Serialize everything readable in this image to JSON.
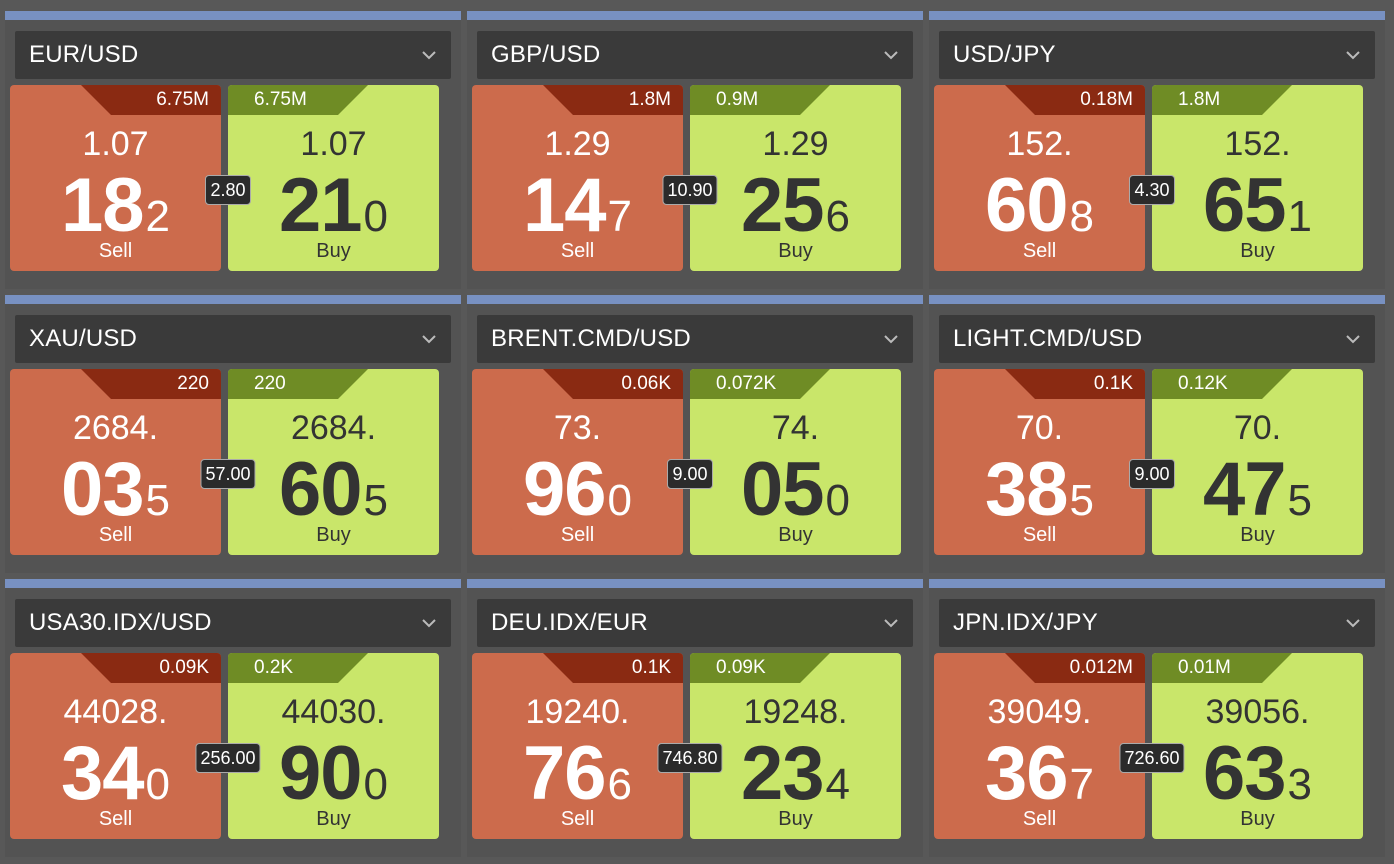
{
  "tiles": [
    {
      "symbol": "EUR/USD",
      "sell": {
        "volume": "6.75M",
        "prefix": "1.07",
        "big": "18",
        "pip": "2",
        "label": "Sell"
      },
      "buy": {
        "volume": "6.75M",
        "prefix": "1.07",
        "big": "21",
        "pip": "0",
        "label": "Buy"
      },
      "spread": "2.80"
    },
    {
      "symbol": "GBP/USD",
      "sell": {
        "volume": "1.8M",
        "prefix": "1.29",
        "big": "14",
        "pip": "7",
        "label": "Sell"
      },
      "buy": {
        "volume": "0.9M",
        "prefix": "1.29",
        "big": "25",
        "pip": "6",
        "label": "Buy"
      },
      "spread": "10.90"
    },
    {
      "symbol": "USD/JPY",
      "sell": {
        "volume": "0.18M",
        "prefix": "152.",
        "big": "60",
        "pip": "8",
        "label": "Sell"
      },
      "buy": {
        "volume": "1.8M",
        "prefix": "152.",
        "big": "65",
        "pip": "1",
        "label": "Buy"
      },
      "spread": "4.30"
    },
    {
      "symbol": "XAU/USD",
      "sell": {
        "volume": "220",
        "prefix": "2684.",
        "big": "03",
        "pip": "5",
        "label": "Sell"
      },
      "buy": {
        "volume": "220",
        "prefix": "2684.",
        "big": "60",
        "pip": "5",
        "label": "Buy"
      },
      "spread": "57.00"
    },
    {
      "symbol": "BRENT.CMD/USD",
      "sell": {
        "volume": "0.06K",
        "prefix": "73.",
        "big": "96",
        "pip": "0",
        "label": "Sell"
      },
      "buy": {
        "volume": "0.072K",
        "prefix": "74.",
        "big": "05",
        "pip": "0",
        "label": "Buy"
      },
      "spread": "9.00"
    },
    {
      "symbol": "LIGHT.CMD/USD",
      "sell": {
        "volume": "0.1K",
        "prefix": "70.",
        "big": "38",
        "pip": "5",
        "label": "Sell"
      },
      "buy": {
        "volume": "0.12K",
        "prefix": "70.",
        "big": "47",
        "pip": "5",
        "label": "Buy"
      },
      "spread": "9.00"
    },
    {
      "symbol": "USA30.IDX/USD",
      "sell": {
        "volume": "0.09K",
        "prefix": "44028.",
        "big": "34",
        "pip": "0",
        "label": "Sell"
      },
      "buy": {
        "volume": "0.2K",
        "prefix": "44030.",
        "big": "90",
        "pip": "0",
        "label": "Buy"
      },
      "spread": "256.00"
    },
    {
      "symbol": "DEU.IDX/EUR",
      "sell": {
        "volume": "0.1K",
        "prefix": "19240.",
        "big": "76",
        "pip": "6",
        "label": "Sell"
      },
      "buy": {
        "volume": "0.09K",
        "prefix": "19248.",
        "big": "23",
        "pip": "4",
        "label": "Buy"
      },
      "spread": "746.80"
    },
    {
      "symbol": "JPN.IDX/JPY",
      "sell": {
        "volume": "0.012M",
        "prefix": "39049.",
        "big": "36",
        "pip": "7",
        "label": "Sell"
      },
      "buy": {
        "volume": "0.01M",
        "prefix": "39056.",
        "big": "63",
        "pip": "3",
        "label": "Buy"
      },
      "spread": "726.60"
    }
  ],
  "icons": {
    "dropdown": "chevron-down-icon"
  },
  "colors": {
    "sell": "#cc6b4c",
    "sell_volume": "#8a2a12",
    "buy": "#c9e66a",
    "buy_volume": "#6f8c25",
    "header": "#3a3a3a",
    "accent_bar": "#7891c2"
  }
}
